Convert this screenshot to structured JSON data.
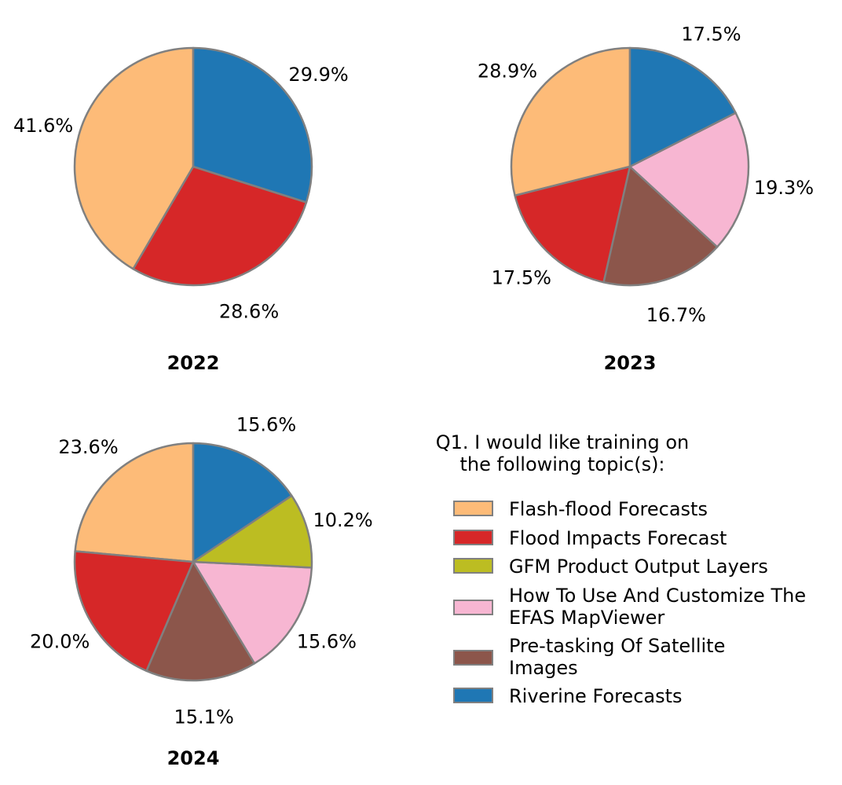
{
  "chart_data": [
    {
      "type": "pie",
      "title": "2022",
      "categories": [
        "Flash-flood Forecasts",
        "Flood Impacts Forecast",
        "Riverine Forecasts"
      ],
      "values": [
        41.6,
        28.6,
        29.9
      ],
      "labels": [
        "41.6%",
        "28.6%",
        "29.9%"
      ]
    },
    {
      "type": "pie",
      "title": "2023",
      "categories": [
        "Flash-flood Forecasts",
        "Flood Impacts Forecast",
        "Pre-tasking Of Satellite Images",
        "How To Use And Customize The EFAS MapViewer",
        "Riverine Forecasts"
      ],
      "values": [
        28.9,
        17.5,
        16.7,
        19.3,
        17.5
      ],
      "labels": [
        "28.9%",
        "17.5%",
        "16.7%",
        "19.3%",
        "17.5%"
      ]
    },
    {
      "type": "pie",
      "title": "2024",
      "categories": [
        "Flash-flood Forecasts",
        "Flood Impacts Forecast",
        "Pre-tasking Of Satellite Images",
        "How To Use And Customize The EFAS MapViewer",
        "GFM Product Output Layers",
        "Riverine Forecasts"
      ],
      "values": [
        23.6,
        20.0,
        15.1,
        15.6,
        10.2,
        15.6
      ],
      "labels": [
        "23.6%",
        "20.0%",
        "15.1%",
        "15.6%",
        "10.2%",
        "15.6%"
      ]
    }
  ],
  "legend": {
    "title_lines": [
      "Q1. I would like training on",
      "the following topic(s):"
    ],
    "items": [
      {
        "label_lines": [
          "Flash-flood Forecasts"
        ],
        "color": "#fdbb78"
      },
      {
        "label_lines": [
          "Flood Impacts Forecast"
        ],
        "color": "#d62728"
      },
      {
        "label_lines": [
          "GFM Product Output Layers"
        ],
        "color": "#bcbd22"
      },
      {
        "label_lines": [
          "How To Use And Customize The",
          "EFAS MapViewer"
        ],
        "color": "#f7b6d2"
      },
      {
        "label_lines": [
          "Pre-tasking Of Satellite",
          "Images"
        ],
        "color": "#8c564b"
      },
      {
        "label_lines": [
          "Riverine Forecasts"
        ],
        "color": "#1f77b4"
      }
    ]
  },
  "colors": {
    "Flash-flood Forecasts": "#fdbb78",
    "Flood Impacts Forecast": "#d62728",
    "GFM Product Output Layers": "#bcbd22",
    "How To Use And Customize The EFAS MapViewer": "#f7b6d2",
    "Pre-tasking Of Satellite Images": "#8c564b",
    "Riverine Forecasts": "#1f77b4",
    "edge": "#808080"
  }
}
